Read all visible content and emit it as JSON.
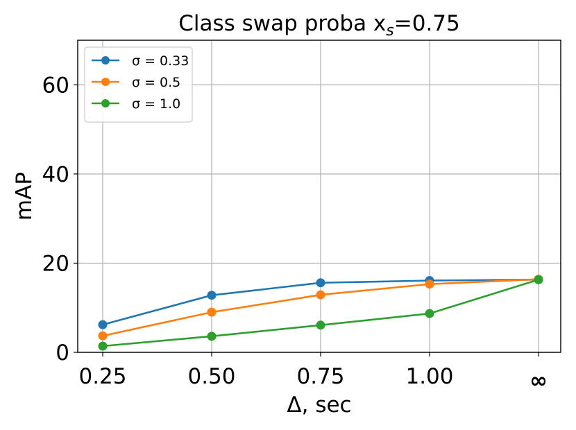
{
  "chart_data": {
    "type": "line",
    "title": "Class swap proba x",
    "title_subscript": "s",
    "title_suffix": "=0.75",
    "xlabel": "Δ, sec",
    "ylabel": "mAP",
    "categories": [
      "0.25",
      "0.50",
      "0.75",
      "1.00",
      "∞"
    ],
    "yticks": [
      "0",
      "20",
      "40",
      "60"
    ],
    "ylim": [
      0,
      70
    ],
    "grid": true,
    "legend_position": "top-left",
    "series": [
      {
        "name": "σ = 0.33",
        "color": "#1f77b4",
        "values": [
          6.2,
          12.8,
          15.6,
          16.1,
          16.3
        ]
      },
      {
        "name": "σ = 0.5",
        "color": "#ff7f0e",
        "values": [
          3.7,
          9.0,
          12.9,
          15.3,
          16.4
        ]
      },
      {
        "name": "σ = 1.0",
        "color": "#2ca02c",
        "values": [
          1.4,
          3.6,
          6.1,
          8.7,
          16.3
        ]
      }
    ]
  }
}
